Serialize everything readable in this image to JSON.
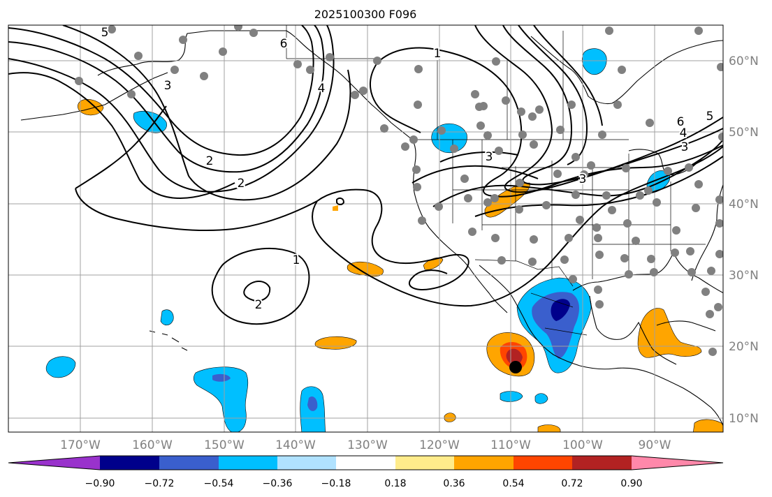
{
  "title": "2025100300 F096",
  "map": {
    "lon_labels": [
      "170°W",
      "160°W",
      "150°W",
      "140°W",
      "130°W",
      "120°W",
      "110°W",
      "100°W",
      "90°W"
    ],
    "lat_labels": [
      "60°N",
      "50°N",
      "40°N",
      "30°N",
      "20°N",
      "10°N"
    ],
    "contour_labels": [
      "5",
      "6",
      "1",
      "4",
      "3",
      "2",
      "3",
      "1",
      "2",
      "2",
      "3",
      "6",
      "5",
      "4",
      "3"
    ],
    "storm_marker": "black-dot"
  },
  "colorbar": {
    "colors": [
      "#9932cc",
      "#00008b",
      "#3a5fcd",
      "#00bfff",
      "#b0e2ff",
      "#ffffff",
      "#ffec8b",
      "#ffa500",
      "#ff4500",
      "#b22222",
      "#ff88aa"
    ],
    "ticks": [
      "−0.90",
      "−0.72",
      "−0.54",
      "−0.36",
      "−0.18",
      "0.18",
      "0.36",
      "0.54",
      "0.72",
      "0.90"
    ]
  }
}
